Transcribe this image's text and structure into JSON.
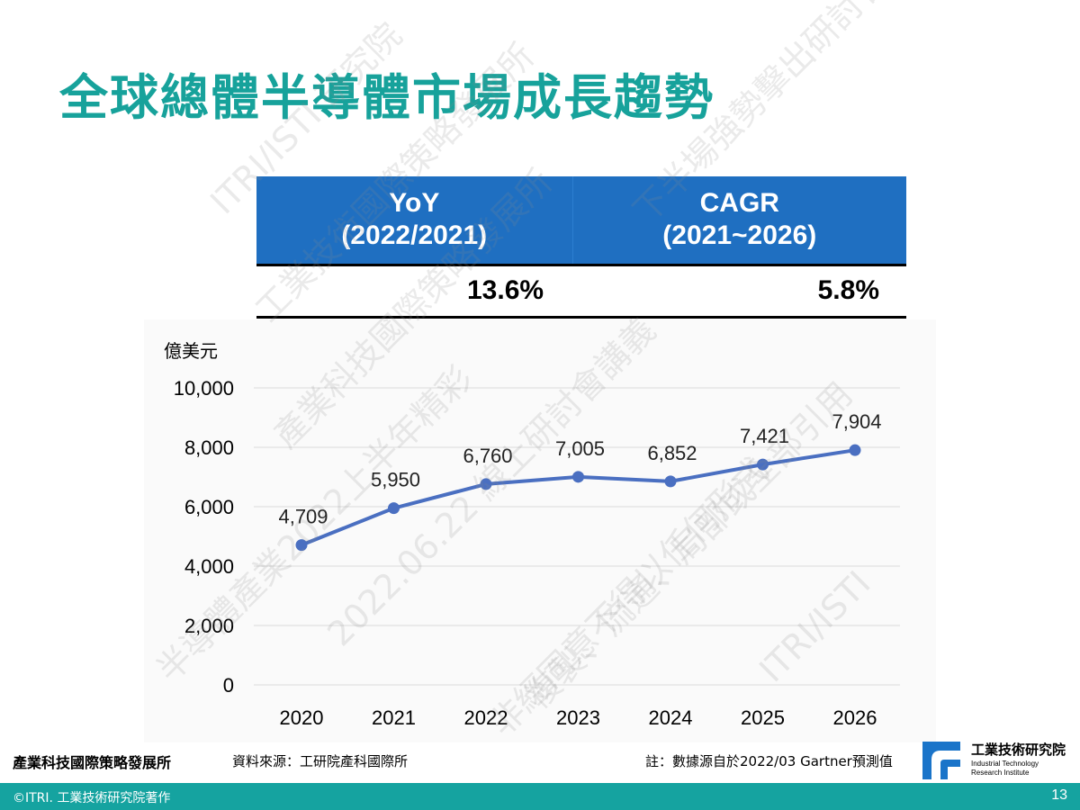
{
  "slide": {
    "title": "全球總體半導體市場成長趨勢"
  },
  "stats_table": {
    "headers": [
      {
        "line1": "YoY",
        "line2": "(2022/2021)"
      },
      {
        "line1": "CAGR",
        "line2": "(2021~2026)"
      }
    ],
    "values": [
      "13.6%",
      "5.8%"
    ]
  },
  "chart_data": {
    "type": "line",
    "ylabel": "億美元",
    "x": [
      "2020",
      "2021",
      "2022",
      "2023",
      "2024",
      "2025",
      "2026"
    ],
    "values": [
      4709,
      5950,
      6760,
      7005,
      6852,
      7421,
      7904
    ],
    "data_labels": [
      "4,709",
      "5,950",
      "6,760",
      "7,005",
      "6,852",
      "7,421",
      "7,904"
    ],
    "ylim": [
      0,
      10000
    ],
    "yticks": [
      0,
      2000,
      4000,
      6000,
      8000,
      10000
    ],
    "ytick_labels": [
      "0",
      "2,000",
      "4,000",
      "6,000",
      "8,000",
      "10,000"
    ],
    "grid": true,
    "line_color": "#4a6fc1",
    "marker_color": "#4a6fc1"
  },
  "watermark": {
    "lines": [
      "ITRI/ISTI 研究院",
      "工業技術國際策略發展所",
      "產業科技國際策略發展所",
      "半導體產業2022上半年精彩",
      "2022.06.22 線上研討會講義",
      "非經同意不得以任何形式",
      "複製、流通、局部或全部引用",
      "ITRI/ISTI",
      "下半場強勢擊出研討會"
    ]
  },
  "footer": {
    "org": "產業科技國際策略發展所",
    "source": "資料來源：工研院產科國際所",
    "note": "註：數據源自於2022/03 Gartner預測值",
    "copyright": "©ITRI. 工業技術研究院著作",
    "page_number": "13"
  },
  "logo": {
    "name": "工業技術研究院",
    "en_line1": "Industrial Technology",
    "en_line2": "Research Institute",
    "color": "#1a74c9"
  },
  "colors": {
    "title": "#17a29b",
    "table_header": "#1f6fc1",
    "bottom_bar": "#15a3a0"
  }
}
